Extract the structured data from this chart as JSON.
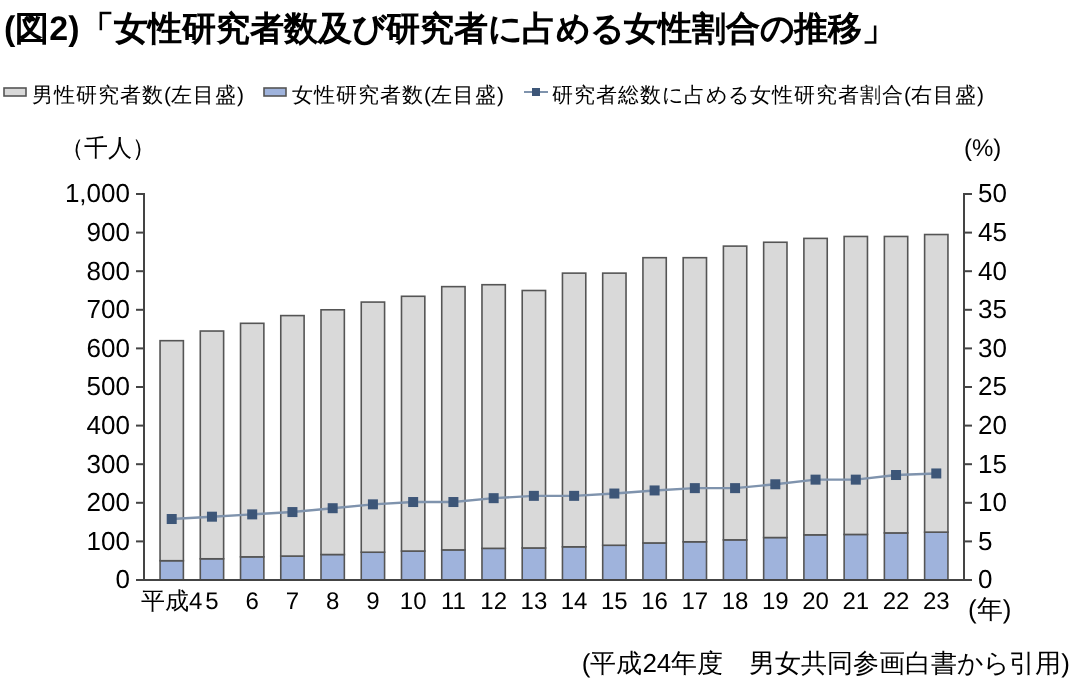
{
  "chart_data": {
    "type": "bar",
    "title": "(図2)「女性研究者数及び研究者に占める女性割合の推移」",
    "ylabel": "（千人）",
    "y2label": "(%)",
    "xlabel": "(年)",
    "annotations": [
      "(平成24年度　男女共同参画白書から引用)"
    ],
    "categories": [
      "平成4",
      "5",
      "6",
      "7",
      "8",
      "9",
      "10",
      "11",
      "12",
      "13",
      "14",
      "15",
      "16",
      "17",
      "18",
      "19",
      "20",
      "21",
      "22",
      "23"
    ],
    "stacked": true,
    "series": [
      {
        "name": "女性研究者数(左目盛)",
        "color": "#9fb3dc",
        "values": [
          50,
          55,
          60,
          62,
          66,
          72,
          75,
          78,
          82,
          83,
          86,
          90,
          96,
          99,
          104,
          110,
          117,
          118,
          122,
          124
        ]
      },
      {
        "name": "男性研究者数(左目盛)",
        "color": "#d9d9d9",
        "values": [
          570,
          590,
          605,
          623,
          634,
          648,
          660,
          682,
          683,
          667,
          709,
          705,
          739,
          736,
          761,
          765,
          768,
          772,
          768,
          771
        ]
      },
      {
        "name": "研究者総数に占める女性研究者割合(右目盛)",
        "type": "line",
        "axis": "y2",
        "color": "#3d5678",
        "marker": "square",
        "values": [
          7.9,
          8.2,
          8.5,
          8.8,
          9.3,
          9.8,
          10.1,
          10.1,
          10.6,
          10.9,
          10.9,
          11.2,
          11.6,
          11.9,
          11.9,
          12.4,
          13.0,
          13.0,
          13.6,
          13.8
        ]
      }
    ],
    "ylim": [
      0,
      1000
    ],
    "yticks": [
      0,
      100,
      200,
      300,
      400,
      500,
      600,
      700,
      800,
      900,
      {
        "value": 1000,
        "label": "1,000"
      }
    ],
    "y2lim": [
      0,
      50
    ],
    "y2ticks": [
      0,
      5,
      10,
      15,
      20,
      25,
      30,
      35,
      40,
      45,
      50
    ],
    "legend": "top",
    "grid": false
  }
}
